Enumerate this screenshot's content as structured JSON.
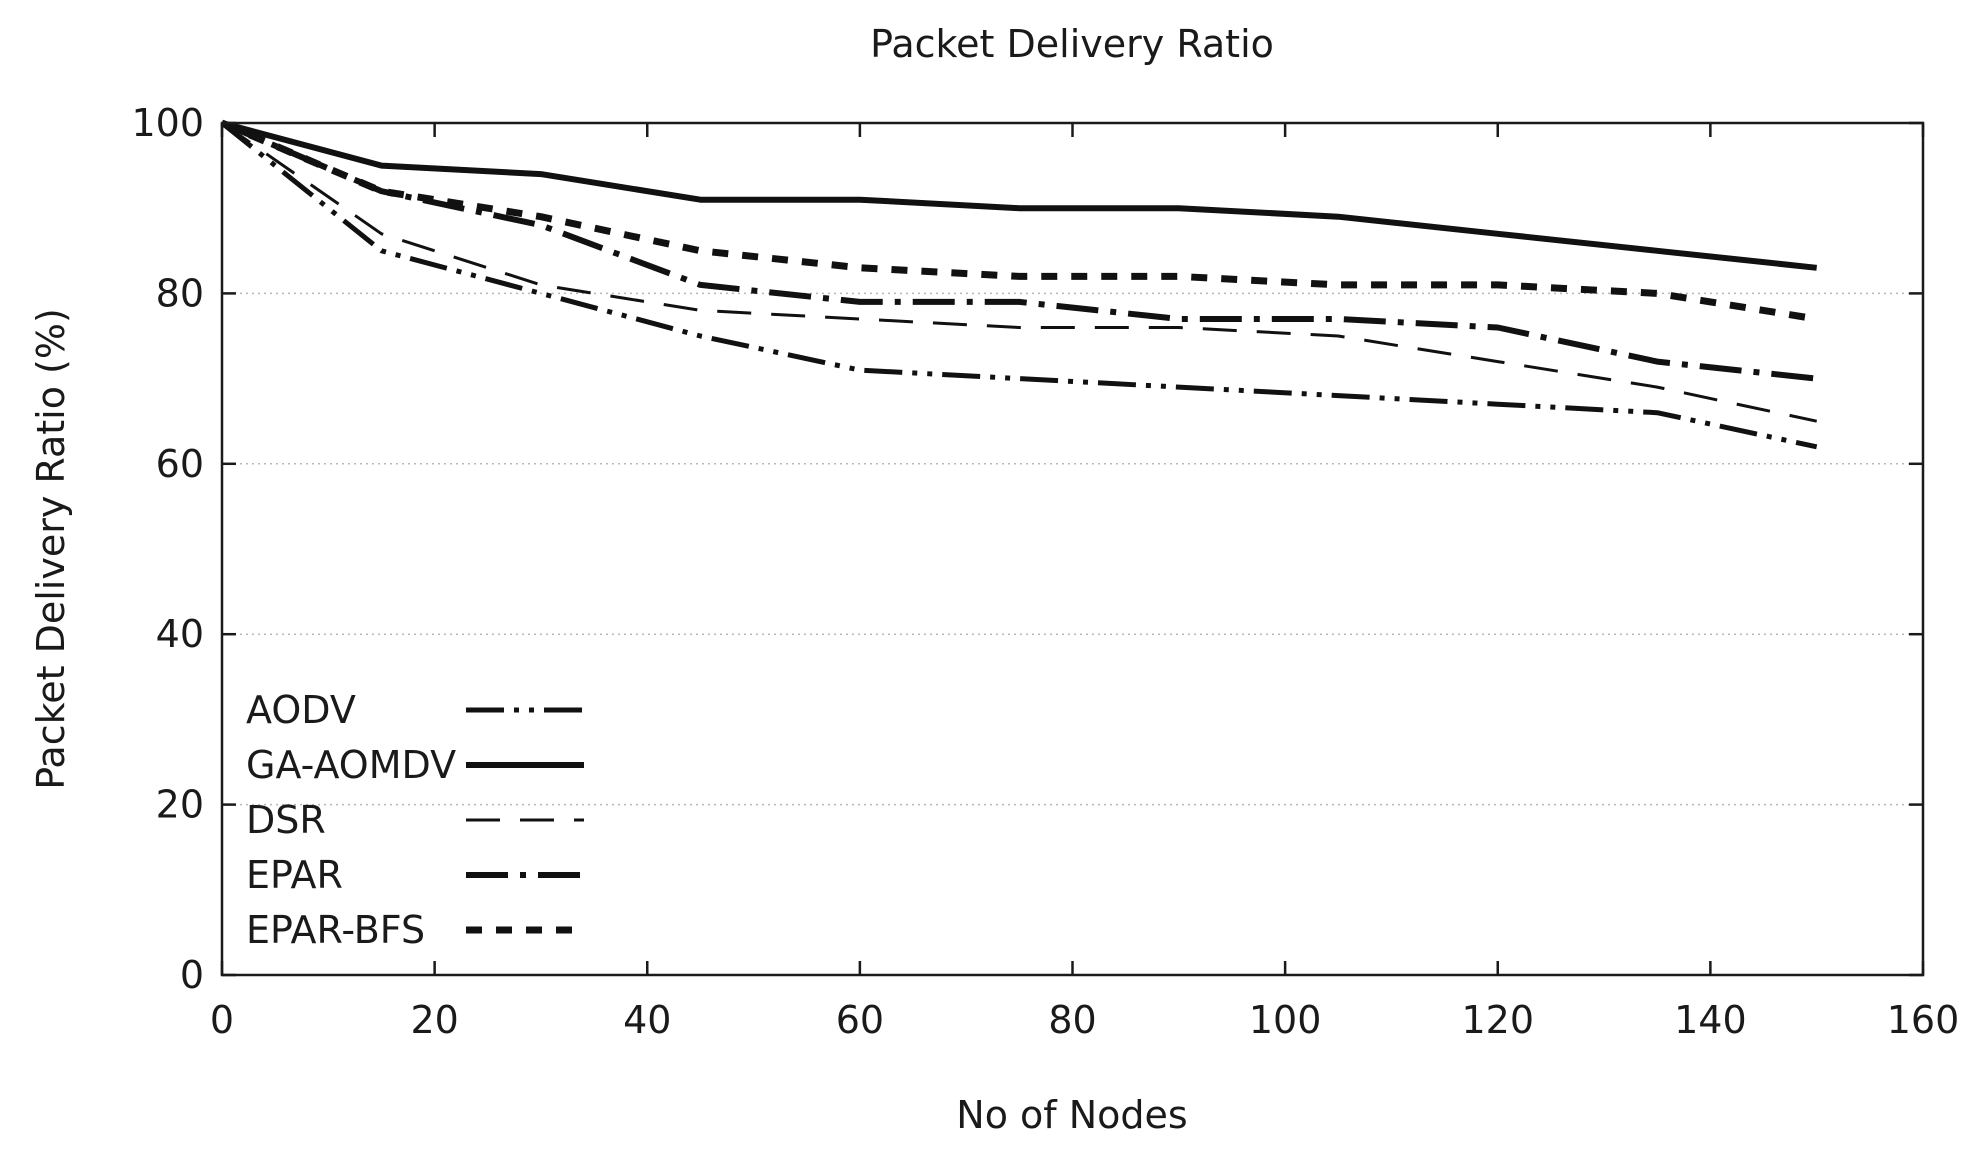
{
  "chart_data": {
    "type": "line",
    "title": "Packet Delivery Ratio",
    "xlabel": "No of Nodes",
    "ylabel": "Packet Delivery Ratio  (%)",
    "xlim": [
      0,
      160
    ],
    "ylim": [
      0,
      100
    ],
    "x_ticks": [
      "0",
      "20",
      "40",
      "60",
      "80",
      "100",
      "120",
      "140",
      "160"
    ],
    "y_ticks": [
      "0",
      "20",
      "40",
      "60",
      "80",
      "100"
    ],
    "grid": "horizontal-dotted",
    "legend_position": "bottom-left",
    "x": [
      0,
      15,
      30,
      45,
      60,
      75,
      90,
      105,
      120,
      135,
      150
    ],
    "series": [
      {
        "name": "AODV",
        "style": "dash-dot-dot",
        "values": [
          100,
          85,
          80,
          75,
          71,
          70,
          69,
          68,
          67,
          66,
          62
        ]
      },
      {
        "name": "GA-AOMDV",
        "style": "solid",
        "values": [
          100,
          95,
          94,
          91,
          91,
          90,
          90,
          89,
          87,
          85,
          83
        ]
      },
      {
        "name": "DSR",
        "style": "long-dash",
        "values": [
          100,
          87,
          81,
          78,
          77,
          76,
          76,
          75,
          72,
          69,
          65
        ]
      },
      {
        "name": "EPAR",
        "style": "dash-dot",
        "values": [
          100,
          92,
          88,
          81,
          79,
          79,
          77,
          77,
          76,
          72,
          70
        ]
      },
      {
        "name": "EPAR-BFS",
        "style": "short-dash",
        "values": [
          100,
          92,
          89,
          85,
          83,
          82,
          82,
          81,
          81,
          80,
          77
        ]
      }
    ]
  }
}
